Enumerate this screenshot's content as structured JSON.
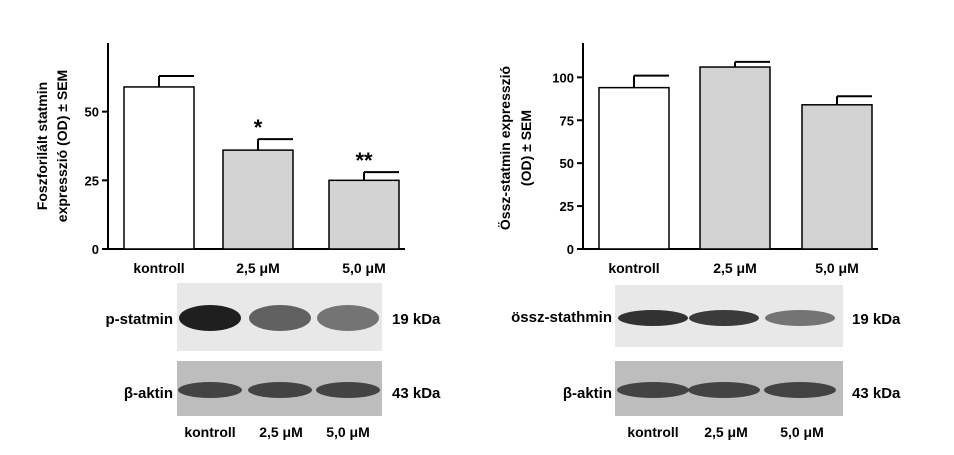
{
  "chart_data": [
    {
      "type": "bar",
      "ylabel_line1": "Foszforilált statmin",
      "ylabel_line2": "expresszió (OD) ± SEM",
      "categories": [
        "kontroll",
        "2,5 μM",
        "5,0 μM"
      ],
      "values": [
        59,
        36,
        25
      ],
      "errors": [
        4,
        4,
        3
      ],
      "significance": [
        "",
        "*",
        "**"
      ],
      "bar_colors": [
        "#ffffff",
        "#d3d3d3",
        "#d3d3d3"
      ],
      "yticks": [
        0,
        25,
        50
      ],
      "ylim": [
        0,
        75
      ],
      "grid": false
    },
    {
      "type": "bar",
      "ylabel_line1": "Össz-statmin expresszió",
      "ylabel_line2": "(OD) ± SEM",
      "categories": [
        "kontroll",
        "2,5 μM",
        "5,0 μM"
      ],
      "values": [
        94,
        106,
        84
      ],
      "errors": [
        7,
        3,
        5
      ],
      "significance": [
        "",
        "",
        ""
      ],
      "bar_colors": [
        "#ffffff",
        "#d3d3d3",
        "#d3d3d3"
      ],
      "yticks": [
        0,
        25,
        50,
        75,
        100
      ],
      "ylim": [
        0,
        120
      ],
      "grid": false
    }
  ],
  "blots": {
    "left": {
      "band1_label": "p-statmin",
      "band1_size": "19 kDa",
      "band1_intensity": [
        1.0,
        0.65,
        0.55
      ],
      "band2_label": "β-aktin",
      "band2_size": "43 kDa",
      "band2_intensity": [
        0.8,
        0.8,
        0.8
      ],
      "lanes": [
        "kontroll",
        "2,5 μM",
        "5,0 μM"
      ]
    },
    "right": {
      "band1_label": "össz-stathmin",
      "band1_size": "19 kDa",
      "band1_intensity": [
        0.9,
        0.85,
        0.55
      ],
      "band2_label": "β-aktin",
      "band2_size": "43 kDa",
      "band2_intensity": [
        0.8,
        0.8,
        0.8
      ],
      "lanes": [
        "kontroll",
        "2,5 μM",
        "5,0 μM"
      ]
    }
  }
}
